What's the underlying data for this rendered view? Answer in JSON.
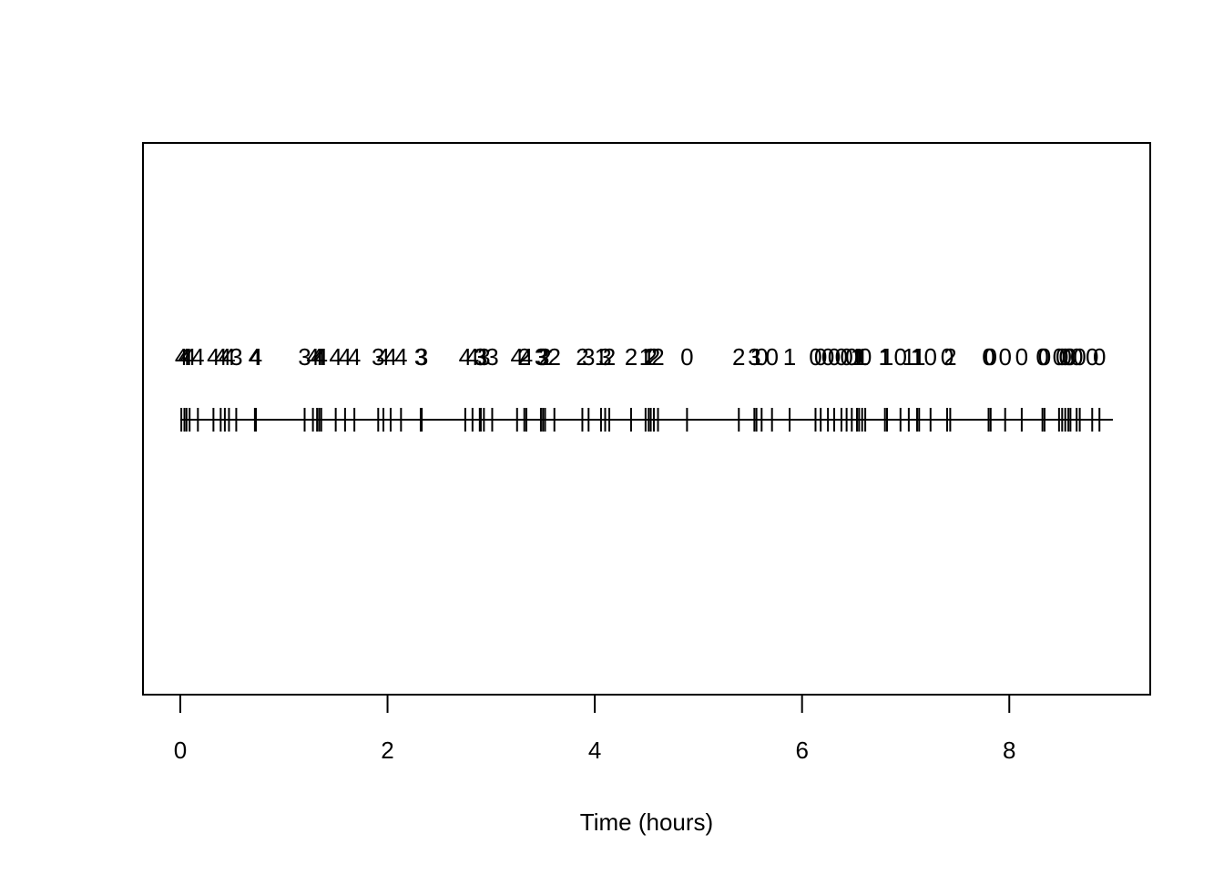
{
  "chart_data": {
    "type": "timeline",
    "xlabel": "Time (hours)",
    "xlim": [
      -0.36,
      9.36
    ],
    "xticks": [
      0,
      2,
      4,
      6,
      8
    ],
    "color": "#000000",
    "x": [
      0.01,
      0.04,
      0.06,
      0.09,
      0.17,
      0.32,
      0.39,
      0.43,
      0.47,
      0.54,
      0.72,
      0.73,
      1.2,
      1.28,
      1.32,
      1.34,
      1.36,
      1.5,
      1.59,
      1.68,
      1.91,
      1.96,
      2.03,
      2.13,
      2.32,
      2.33,
      2.75,
      2.82,
      2.89,
      2.9,
      2.93,
      3.01,
      3.25,
      3.32,
      3.34,
      3.48,
      3.5,
      3.52,
      3.61,
      3.88,
      3.94,
      4.06,
      4.1,
      4.14,
      4.35,
      4.49,
      4.52,
      4.54,
      4.57,
      4.61,
      4.89,
      5.39,
      5.54,
      5.56,
      5.61,
      5.71,
      5.88,
      6.13,
      6.18,
      6.25,
      6.31,
      6.38,
      6.43,
      6.48,
      6.53,
      6.55,
      6.58,
      6.61,
      6.8,
      6.82,
      6.95,
      7.03,
      7.11,
      7.13,
      7.24,
      7.4,
      7.43,
      7.8,
      7.82,
      7.96,
      8.12,
      8.32,
      8.34,
      8.48,
      8.51,
      8.54,
      8.57,
      8.59,
      8.65,
      8.68,
      8.8,
      8.87
    ],
    "values": [
      4,
      4,
      4,
      4,
      4,
      4,
      4,
      4,
      4,
      3,
      4,
      4,
      3,
      4,
      4,
      4,
      4,
      4,
      4,
      4,
      3,
      4,
      4,
      4,
      3,
      3,
      4,
      4,
      3,
      3,
      3,
      3,
      4,
      2,
      4,
      3,
      3,
      2,
      2,
      2,
      3,
      1,
      3,
      2,
      2,
      1,
      1,
      2,
      2,
      2,
      0,
      2,
      3,
      1,
      0,
      0,
      1,
      0,
      0,
      0,
      0,
      0,
      0,
      0,
      1,
      1,
      1,
      0,
      1,
      1,
      0,
      1,
      1,
      1,
      0,
      0,
      2,
      0,
      0,
      0,
      0,
      0,
      0,
      0,
      0,
      0,
      0,
      0,
      0,
      0,
      0,
      0
    ]
  }
}
